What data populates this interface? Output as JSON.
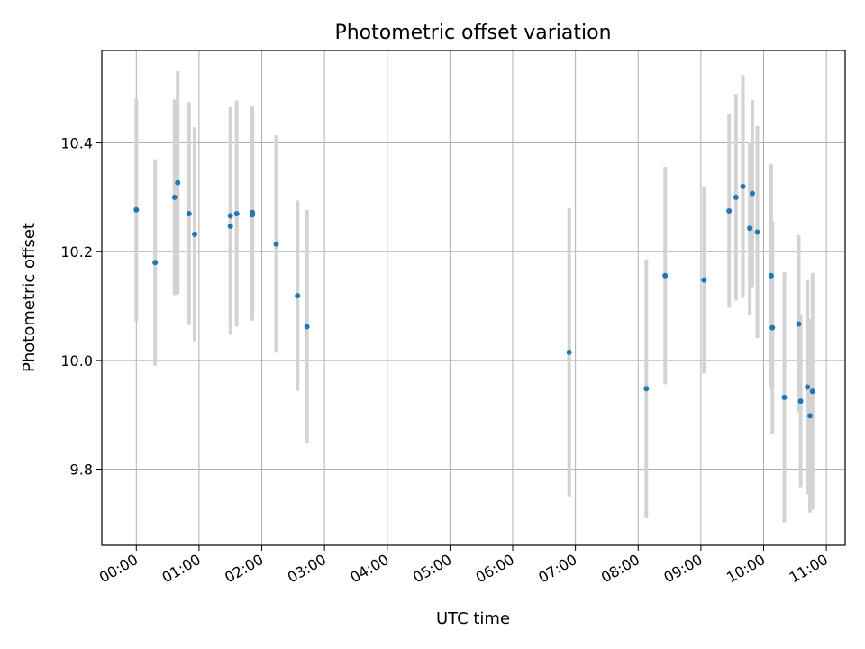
{
  "chart_data": {
    "type": "scatter",
    "title": "Photometric offset variation",
    "xlabel": "UTC time",
    "ylabel": "Photometric offset",
    "x_unit": "hours (UTC, 0 = 00:00)",
    "xlim": [
      -0.55,
      11.3
    ],
    "ylim": [
      9.66,
      10.57
    ],
    "xticks": [
      0,
      1,
      2,
      3,
      4,
      5,
      6,
      7,
      8,
      9,
      10,
      11
    ],
    "xtick_labels": [
      "00:00",
      "01:00",
      "02:00",
      "03:00",
      "04:00",
      "05:00",
      "06:00",
      "07:00",
      "08:00",
      "09:00",
      "10:00",
      "11:00"
    ],
    "yticks": [
      9.8,
      10.0,
      10.2,
      10.4
    ],
    "ytick_labels": [
      "9.8",
      "10.0",
      "10.2",
      "10.4"
    ],
    "grid": true,
    "marker_color": "#1f77b4",
    "errorbar_color": "#d3d3d3",
    "points": [
      {
        "x": 0.0,
        "y": 10.277,
        "err": 0.205
      },
      {
        "x": 0.3,
        "y": 10.18,
        "err": 0.19
      },
      {
        "x": 0.61,
        "y": 10.3,
        "err": 0.18
      },
      {
        "x": 0.66,
        "y": 10.327,
        "err": 0.205
      },
      {
        "x": 0.84,
        "y": 10.27,
        "err": 0.205
      },
      {
        "x": 0.93,
        "y": 10.232,
        "err": 0.197
      },
      {
        "x": 1.5,
        "y": 10.247,
        "err": 0.2
      },
      {
        "x": 1.5,
        "y": 10.266,
        "err": 0.2
      },
      {
        "x": 1.6,
        "y": 10.27,
        "err": 0.208
      },
      {
        "x": 1.85,
        "y": 10.272,
        "err": 0.195
      },
      {
        "x": 1.85,
        "y": 10.268,
        "err": 0.195
      },
      {
        "x": 2.23,
        "y": 10.214,
        "err": 0.2
      },
      {
        "x": 2.57,
        "y": 10.119,
        "err": 0.175
      },
      {
        "x": 2.72,
        "y": 10.062,
        "err": 0.215
      },
      {
        "x": 6.9,
        "y": 10.015,
        "err": 0.265
      },
      {
        "x": 8.13,
        "y": 9.948,
        "err": 0.238
      },
      {
        "x": 8.43,
        "y": 10.156,
        "err": 0.2
      },
      {
        "x": 9.05,
        "y": 10.148,
        "err": 0.172
      },
      {
        "x": 9.45,
        "y": 10.275,
        "err": 0.178
      },
      {
        "x": 9.56,
        "y": 10.3,
        "err": 0.19
      },
      {
        "x": 9.67,
        "y": 10.32,
        "err": 0.205
      },
      {
        "x": 9.78,
        "y": 10.243,
        "err": 0.16
      },
      {
        "x": 9.82,
        "y": 10.307,
        "err": 0.172
      },
      {
        "x": 9.9,
        "y": 10.236,
        "err": 0.195
      },
      {
        "x": 10.12,
        "y": 10.156,
        "err": 0.205
      },
      {
        "x": 10.14,
        "y": 10.06,
        "err": 0.196
      },
      {
        "x": 10.33,
        "y": 9.932,
        "err": 0.23
      },
      {
        "x": 10.56,
        "y": 10.067,
        "err": 0.163
      },
      {
        "x": 10.59,
        "y": 9.925,
        "err": 0.158
      },
      {
        "x": 10.7,
        "y": 9.951,
        "err": 0.197
      },
      {
        "x": 10.74,
        "y": 9.898,
        "err": 0.178
      },
      {
        "x": 10.78,
        "y": 9.943,
        "err": 0.218
      }
    ]
  }
}
